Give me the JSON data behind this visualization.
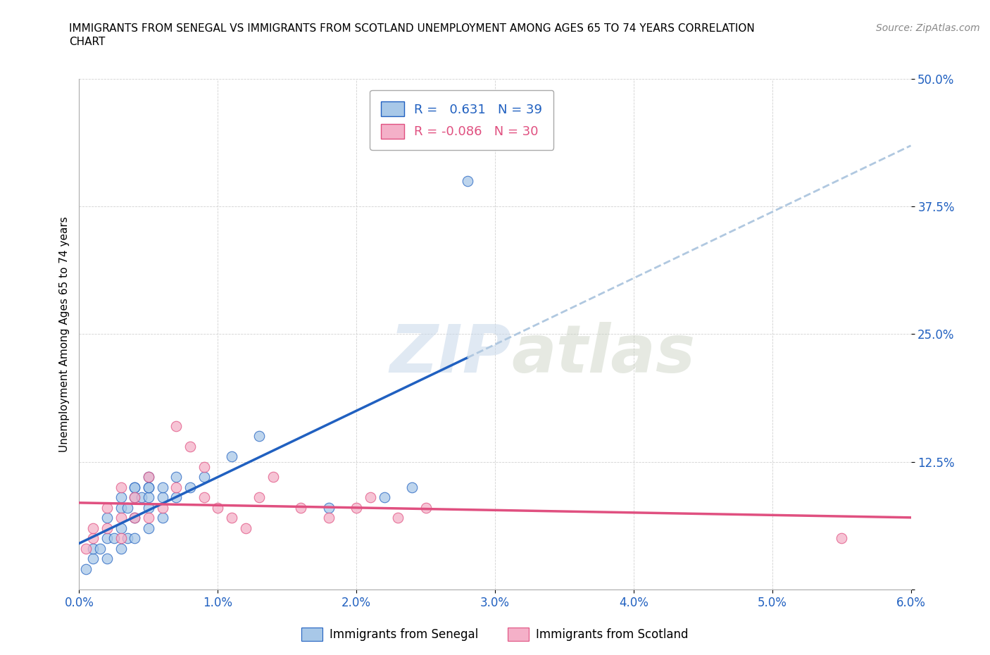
{
  "title": "IMMIGRANTS FROM SENEGAL VS IMMIGRANTS FROM SCOTLAND UNEMPLOYMENT AMONG AGES 65 TO 74 YEARS CORRELATION\nCHART",
  "source": "Source: ZipAtlas.com",
  "ylabel": "Unemployment Among Ages 65 to 74 years",
  "xlim": [
    0.0,
    0.06
  ],
  "ylim": [
    0.0,
    0.5
  ],
  "xticks": [
    0.0,
    0.01,
    0.02,
    0.03,
    0.04,
    0.05,
    0.06
  ],
  "yticks": [
    0.0,
    0.125,
    0.25,
    0.375,
    0.5
  ],
  "xtick_labels": [
    "0.0%",
    "1.0%",
    "2.0%",
    "3.0%",
    "4.0%",
    "5.0%",
    "6.0%"
  ],
  "ytick_labels": [
    "",
    "12.5%",
    "25.0%",
    "37.5%",
    "50.0%"
  ],
  "senegal_R": 0.631,
  "senegal_N": 39,
  "scotland_R": -0.086,
  "scotland_N": 30,
  "senegal_color": "#a8c8e8",
  "scotland_color": "#f4b0c8",
  "senegal_line_color": "#2060c0",
  "scotland_line_color": "#e05080",
  "senegal_dashed_color": "#b0c8e0",
  "watermark_zip": "ZIP",
  "watermark_atlas": "atlas",
  "senegal_x": [
    0.0005,
    0.001,
    0.001,
    0.0015,
    0.002,
    0.002,
    0.002,
    0.0025,
    0.003,
    0.003,
    0.003,
    0.003,
    0.0035,
    0.0035,
    0.004,
    0.004,
    0.004,
    0.004,
    0.004,
    0.0045,
    0.005,
    0.005,
    0.005,
    0.005,
    0.005,
    0.005,
    0.006,
    0.006,
    0.006,
    0.007,
    0.007,
    0.008,
    0.009,
    0.011,
    0.013,
    0.018,
    0.022,
    0.024,
    0.028
  ],
  "senegal_y": [
    0.02,
    0.03,
    0.04,
    0.04,
    0.03,
    0.05,
    0.07,
    0.05,
    0.04,
    0.06,
    0.08,
    0.09,
    0.05,
    0.08,
    0.05,
    0.07,
    0.09,
    0.1,
    0.1,
    0.09,
    0.06,
    0.08,
    0.09,
    0.1,
    0.11,
    0.1,
    0.07,
    0.09,
    0.1,
    0.09,
    0.11,
    0.1,
    0.11,
    0.13,
    0.15,
    0.08,
    0.09,
    0.1,
    0.4
  ],
  "scotland_x": [
    0.0005,
    0.001,
    0.001,
    0.002,
    0.002,
    0.003,
    0.003,
    0.003,
    0.004,
    0.004,
    0.005,
    0.005,
    0.006,
    0.007,
    0.007,
    0.008,
    0.009,
    0.009,
    0.01,
    0.011,
    0.012,
    0.013,
    0.014,
    0.016,
    0.018,
    0.02,
    0.021,
    0.023,
    0.025,
    0.055
  ],
  "scotland_y": [
    0.04,
    0.05,
    0.06,
    0.06,
    0.08,
    0.05,
    0.07,
    0.1,
    0.07,
    0.09,
    0.07,
    0.11,
    0.08,
    0.1,
    0.16,
    0.14,
    0.09,
    0.12,
    0.08,
    0.07,
    0.06,
    0.09,
    0.11,
    0.08,
    0.07,
    0.08,
    0.09,
    0.07,
    0.08,
    0.05
  ],
  "senegal_trend_x0": 0.0,
  "senegal_trend_x1": 0.06,
  "scotland_trend_x0": 0.0,
  "scotland_trend_x1": 0.06
}
